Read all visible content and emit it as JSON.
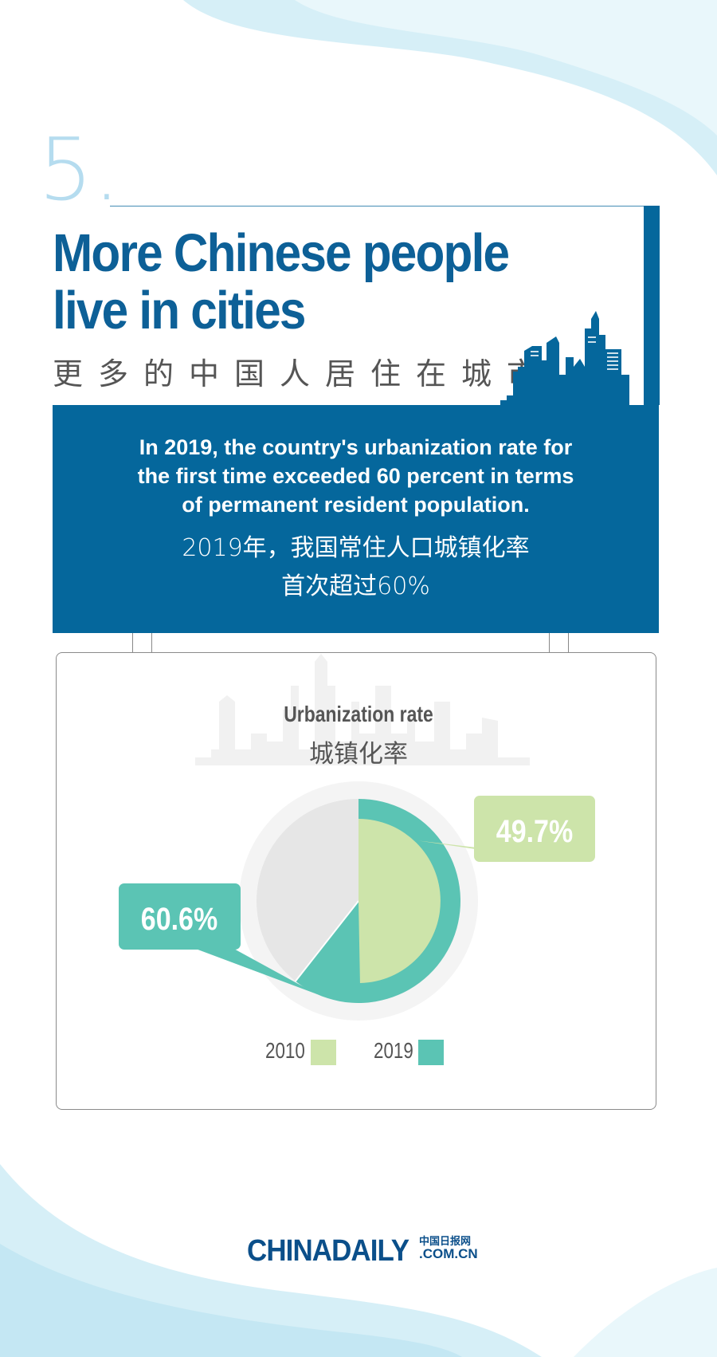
{
  "section_number": "5.",
  "title_en": [
    "More Chinese people",
    "live in cities"
  ],
  "title_cn": "更多的中国人居住在城市",
  "summary_en": [
    "In 2019, the country's urbanization rate for",
    "the first time exceeded 60 percent in terms",
    "of permanent resident population."
  ],
  "summary_cn": [
    "2019年，我国常住人口城镇化率",
    "首次超过60%"
  ],
  "logo": {
    "main": "CHINADAILY",
    "cn": "中国日报网",
    "domain": ".COM.CN"
  },
  "colors": {
    "brand_blue": "#05679c",
    "color_2010": "#cde4aa",
    "color_2019": "#5bc4b4",
    "remainder": "#e6e6e6"
  },
  "chart_data": {
    "type": "pie",
    "title": "Urbanization rate",
    "subtitle": "城镇化率",
    "series": [
      {
        "name": "2010",
        "value": 49.7,
        "label": "49.7%",
        "color": "#cde4aa"
      },
      {
        "name": "2019",
        "value": 60.6,
        "label": "60.6%",
        "color": "#5bc4b4"
      }
    ],
    "legend": {
      "placement": "bottom",
      "items": [
        "2010",
        "2019"
      ]
    }
  }
}
